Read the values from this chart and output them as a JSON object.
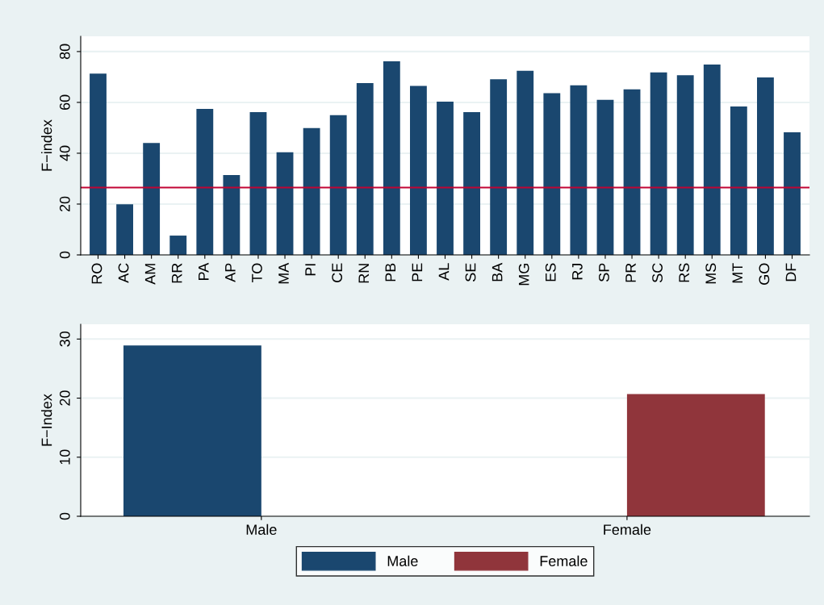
{
  "chart_data": [
    {
      "type": "bar",
      "ylabel": "F−index",
      "categories": [
        "RO",
        "AC",
        "AM",
        "RR",
        "PA",
        "AP",
        "TO",
        "MA",
        "PI",
        "CE",
        "RN",
        "PB",
        "PE",
        "AL",
        "SE",
        "BA",
        "MG",
        "ES",
        "RJ",
        "SP",
        "PR",
        "SC",
        "RS",
        "MS",
        "MT",
        "GO",
        "DF"
      ],
      "values": [
        71.3,
        19.9,
        44.0,
        7.6,
        57.4,
        31.4,
        56.2,
        40.4,
        49.9,
        55.0,
        67.6,
        76.2,
        66.5,
        60.3,
        56.2,
        69.1,
        72.4,
        63.6,
        66.7,
        61.0,
        65.1,
        71.8,
        70.7,
        74.9,
        58.4,
        69.8,
        48.2
      ],
      "color": "#1a476f",
      "ylim": [
        0,
        86
      ],
      "yticks": [
        0,
        20,
        40,
        60,
        80
      ],
      "grid": "y",
      "ref_lines": [
        {
          "axis": "y",
          "value": 26.5,
          "color": "#c10534"
        }
      ]
    },
    {
      "type": "bar",
      "ylabel": "F−Index",
      "categories": [
        "Male",
        "Female"
      ],
      "series": [
        {
          "name": "Male",
          "color": "#1a476f",
          "values": [
            28.9,
            null
          ]
        },
        {
          "name": "Female",
          "color": "#90353b",
          "values": [
            null,
            20.7
          ]
        }
      ],
      "ylim": [
        0,
        32.5
      ],
      "yticks": [
        0,
        10,
        20,
        30
      ],
      "grid": "y",
      "legend": "bottom"
    }
  ]
}
